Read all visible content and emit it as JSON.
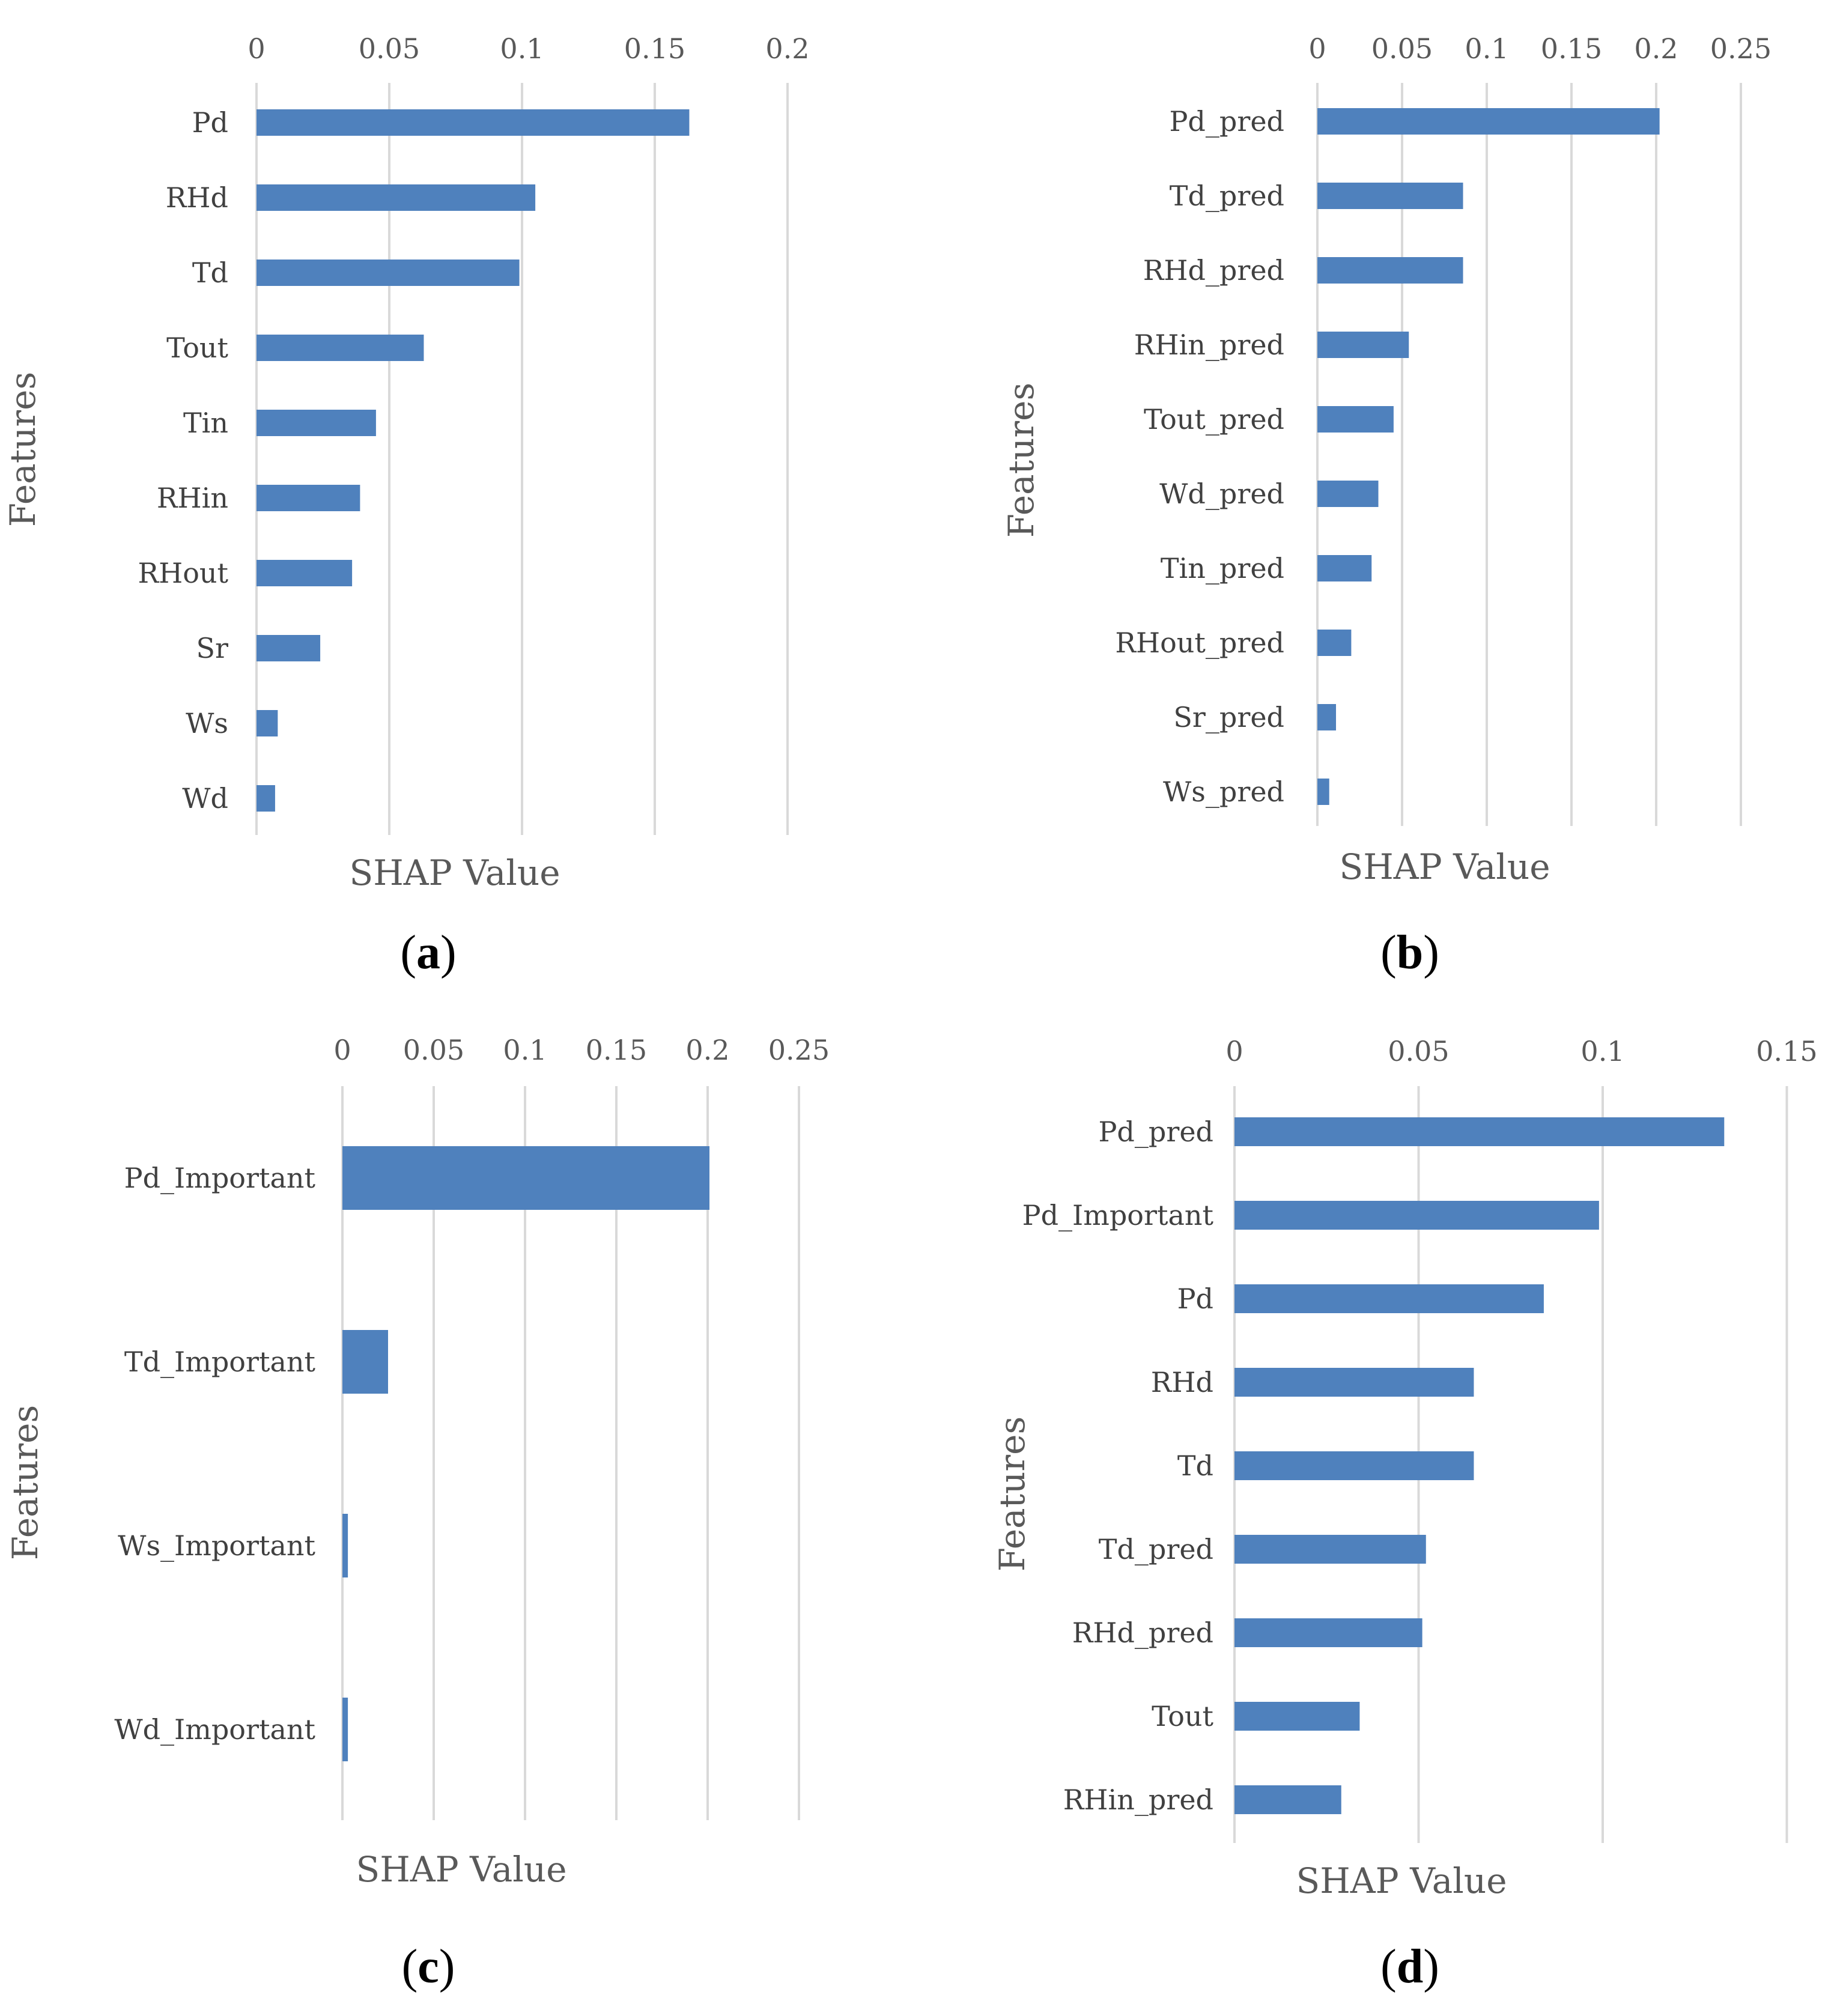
{
  "chart_data": [
    {
      "type": "bar",
      "orientation": "horizontal",
      "panel_label": "a",
      "categories": [
        "Pd",
        "RHd",
        "Td",
        "Tout",
        "Tin",
        "RHin",
        "RHout",
        "Sr",
        "Ws",
        "Wd"
      ],
      "values": [
        0.163,
        0.105,
        0.099,
        0.063,
        0.045,
        0.039,
        0.036,
        0.024,
        0.008,
        0.007
      ],
      "ticks": [
        "0",
        "0.05",
        "0.1",
        "0.15",
        "0.2"
      ],
      "xlim": [
        0,
        0.2
      ],
      "xlabel": "SHAP Value",
      "ylabel": "Features",
      "x_axis_position": "top",
      "grid": "vertical",
      "bar_color": "#4f81bd"
    },
    {
      "type": "bar",
      "orientation": "horizontal",
      "panel_label": "b",
      "categories": [
        "Pd_pred",
        "Td_pred",
        "RHd_pred",
        "RHin_pred",
        "Tout_pred",
        "Wd_pred",
        "Tin_pred",
        "RHout_pred",
        "Sr_pred",
        "Ws_pred"
      ],
      "values": [
        0.202,
        0.086,
        0.086,
        0.054,
        0.045,
        0.036,
        0.032,
        0.02,
        0.011,
        0.007
      ],
      "ticks": [
        "0",
        "0.05",
        "0.1",
        "0.15",
        "0.2",
        "0.25"
      ],
      "xlim": [
        0,
        0.25
      ],
      "xlabel": "SHAP Value",
      "ylabel": "Features",
      "x_axis_position": "top",
      "grid": "vertical",
      "bar_color": "#4f81bd"
    },
    {
      "type": "bar",
      "orientation": "horizontal",
      "panel_label": "c",
      "categories": [
        "Pd_Important",
        "Td_Important",
        "Ws_Important",
        "Wd_Important"
      ],
      "values": [
        0.201,
        0.025,
        0.003,
        0.003
      ],
      "ticks": [
        "0",
        "0.05",
        "0.1",
        "0.15",
        "0.2",
        "0.25"
      ],
      "xlim": [
        0,
        0.25
      ],
      "xlabel": "SHAP Value",
      "ylabel": "Features",
      "x_axis_position": "top",
      "grid": "vertical",
      "bar_color": "#4f81bd"
    },
    {
      "type": "bar",
      "orientation": "horizontal",
      "panel_label": "d",
      "categories": [
        "Pd_pred",
        "Pd_Important",
        "Pd",
        "RHd",
        "Td",
        "Td_pred",
        "RHd_pred",
        "Tout",
        "RHin_pred"
      ],
      "values": [
        0.133,
        0.099,
        0.084,
        0.065,
        0.065,
        0.052,
        0.051,
        0.034,
        0.029
      ],
      "ticks": [
        "0",
        "0.05",
        "0.1",
        "0.15"
      ],
      "xlim": [
        0,
        0.15
      ],
      "xlabel": "SHAP Value",
      "ylabel": "Features",
      "x_axis_position": "top",
      "grid": "vertical",
      "bar_color": "#4f81bd"
    }
  ]
}
